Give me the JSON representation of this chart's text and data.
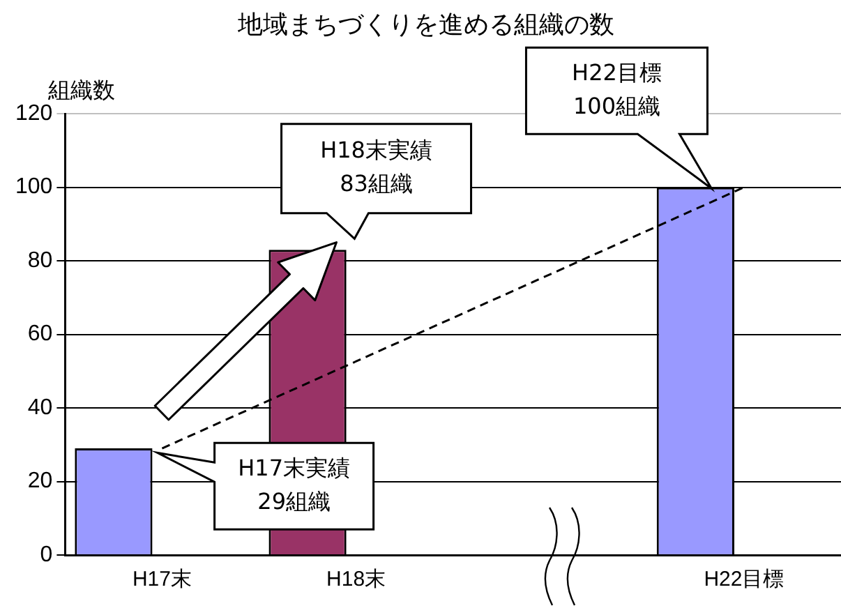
{
  "chart_data": {
    "type": "bar",
    "title": "地域まちづくりを進める組織の数",
    "ylabel": "組織数",
    "categories": [
      "H17末",
      "H18末",
      null,
      "H22目標"
    ],
    "series": [
      {
        "colors": [
          "#9999ff",
          "#993366",
          null,
          "#9999ff"
        ],
        "values": [
          29,
          83,
          null,
          100
        ]
      },
      {
        "type": "line",
        "x": [
          "H17末",
          "H22目標"
        ],
        "values": [
          29,
          100
        ],
        "color": "#000000",
        "line_style": "dashed",
        "marker": "none"
      }
    ],
    "ylim": [
      0,
      120
    ],
    "yticks": [
      0,
      20,
      40,
      60,
      80,
      100,
      120
    ],
    "grid": "y",
    "legend": false,
    "annotations": [
      "H17末実績\n29組織",
      "H18末実績\n83組織",
      "H22目標\n100組織"
    ]
  }
}
